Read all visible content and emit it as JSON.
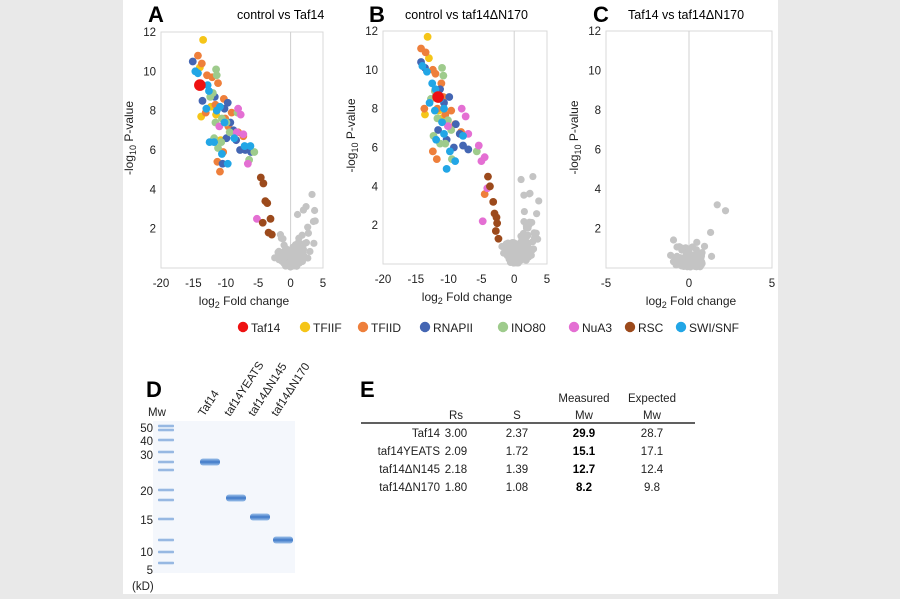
{
  "colors": {
    "Taf14": "#ee1111",
    "TFIIF": "#f5c518",
    "TFIID": "#ee7f3b",
    "RNAPII": "#4466b3",
    "INO80": "#9ecb8c",
    "NuA3": "#e46fd3",
    "RSC": "#9c4a1c",
    "SWI/SNF": "#22a6e6",
    "bg": "#c4c4c4"
  },
  "legend": [
    "Taf14",
    "TFIIF",
    "TFIID",
    "RNAPII",
    "INO80",
    "NuA3",
    "RSC",
    "SWI/SNF"
  ],
  "chart_data": [
    {
      "type": "scatter",
      "panel": "A",
      "title": "control vs Taf14",
      "xlabel": "log2 Fold change",
      "ylabel": "-log10 P-value",
      "xlim": [
        -20,
        5
      ],
      "ylim": [
        0,
        12
      ],
      "xticks": [
        -20,
        -15,
        -10,
        -5,
        0,
        5
      ],
      "yticks": [
        2,
        4,
        6,
        8,
        10,
        12
      ],
      "series": [
        {
          "name": "Taf14",
          "points": [
            [
              -14,
              9.3
            ]
          ]
        },
        {
          "name": "TFIIF",
          "points": [
            [
              -13.5,
              11.6
            ],
            [
              -14,
              10.2
            ],
            [
              -13.8,
              7.7
            ],
            [
              -12.3,
              8.2
            ],
            [
              -11.5,
              7.8
            ],
            [
              -10.8,
              6.5
            ]
          ]
        },
        {
          "name": "TFIID",
          "points": [
            [
              -14.3,
              10.8
            ],
            [
              -13.7,
              10.4
            ],
            [
              -12.9,
              9.8
            ],
            [
              -12.1,
              9.7
            ],
            [
              -11.2,
              9.4
            ],
            [
              -10.3,
              8.6
            ],
            [
              -11.6,
              8.3
            ],
            [
              -10.1,
              7.6
            ],
            [
              -9.6,
              7.2
            ],
            [
              -9.1,
              7.9
            ],
            [
              -10.4,
              5.9
            ],
            [
              -11.3,
              5.4
            ],
            [
              -10.9,
              4.9
            ],
            [
              -8.1,
              6.9
            ],
            [
              -7.3,
              6.7
            ],
            [
              -13.1,
              7.9
            ]
          ]
        },
        {
          "name": "RNAPII",
          "points": [
            [
              -15.1,
              10.5
            ],
            [
              -13.6,
              8.5
            ],
            [
              -11.7,
              8.7
            ],
            [
              -9.7,
              8.4
            ],
            [
              -10.2,
              8.1
            ],
            [
              -9.3,
              7.4
            ],
            [
              -8.8,
              7.0
            ],
            [
              -8.4,
              6.5
            ],
            [
              -7.8,
              6.0
            ],
            [
              -7.0,
              6.0
            ],
            [
              -6.1,
              5.9
            ],
            [
              -9.9,
              6.6
            ],
            [
              -10.5,
              5.3
            ]
          ]
        },
        {
          "name": "INO80",
          "points": [
            [
              -11.5,
              10.1
            ],
            [
              -11.4,
              9.8
            ],
            [
              -12.4,
              8.7
            ],
            [
              -12.0,
              8.9
            ],
            [
              -11.6,
              7.4
            ],
            [
              -10.6,
              7.6
            ],
            [
              -9.9,
              7.4
            ],
            [
              -9.4,
              6.9
            ],
            [
              -8.2,
              7.9
            ],
            [
              -10.7,
              6.4
            ],
            [
              -11.2,
              6.1
            ],
            [
              -5.6,
              5.9
            ],
            [
              -6.4,
              5.5
            ],
            [
              -11.8,
              6.6
            ]
          ]
        },
        {
          "name": "NuA3",
          "points": [
            [
              -8.1,
              8.1
            ],
            [
              -7.7,
              7.8
            ],
            [
              -7.3,
              6.8
            ],
            [
              -8.3,
              6.9
            ],
            [
              -6.6,
              5.3
            ],
            [
              -11.0,
              7.2
            ],
            [
              -5.2,
              2.5
            ]
          ]
        },
        {
          "name": "RSC",
          "points": [
            [
              -4.6,
              4.6
            ],
            [
              -4.2,
              4.3
            ],
            [
              -3.9,
              3.4
            ],
            [
              -3.6,
              3.3
            ],
            [
              -3.1,
              2.5
            ],
            [
              -3.4,
              1.8
            ],
            [
              -4.3,
              2.3
            ],
            [
              -2.9,
              1.7
            ]
          ]
        },
        {
          "name": "SWI/SNF",
          "points": [
            [
              -14.7,
              10.0
            ],
            [
              -14.3,
              9.9
            ],
            [
              -12.8,
              9.3
            ],
            [
              -12.6,
              9.0
            ],
            [
              -13.0,
              8.1
            ],
            [
              -10.9,
              8.2
            ],
            [
              -11.4,
              8.0
            ],
            [
              -10.2,
              7.4
            ],
            [
              -11.8,
              6.4
            ],
            [
              -10.6,
              5.8
            ],
            [
              -9.7,
              5.3
            ],
            [
              -12.5,
              6.4
            ],
            [
              -7.1,
              6.2
            ],
            [
              -6.2,
              6.2
            ],
            [
              -8.7,
              6.6
            ]
          ]
        }
      ]
    },
    {
      "type": "scatter",
      "panel": "B",
      "title": "control vs taf14ΔN170",
      "xlabel": "log2 Fold change",
      "ylabel": "-log10 P-value",
      "xlim": [
        -20,
        5
      ],
      "ylim": [
        0,
        12
      ],
      "xticks": [
        -20,
        -15,
        -10,
        -5,
        0,
        5
      ],
      "yticks": [
        2,
        4,
        6,
        8,
        10,
        12
      ],
      "series": [
        {
          "name": "Taf14",
          "points": [
            [
              -11.6,
              8.6
            ]
          ]
        },
        {
          "name": "TFIIF",
          "points": [
            [
              -13.2,
              11.7
            ],
            [
              -13.0,
              10.6
            ],
            [
              -13.6,
              7.7
            ],
            [
              -11.5,
              7.9
            ],
            [
              -11.0,
              7.5
            ]
          ]
        },
        {
          "name": "TFIID",
          "points": [
            [
              -14.2,
              11.1
            ],
            [
              -13.5,
              10.9
            ],
            [
              -12.4,
              10.0
            ],
            [
              -12.0,
              9.8
            ],
            [
              -11.1,
              9.3
            ],
            [
              -10.8,
              8.6
            ],
            [
              -11.7,
              8.0
            ],
            [
              -10.5,
              7.7
            ],
            [
              -9.6,
              7.9
            ],
            [
              -9.0,
              7.2
            ],
            [
              -13.7,
              8.0
            ],
            [
              -11.8,
              5.4
            ],
            [
              -12.4,
              5.8
            ],
            [
              -4.5,
              3.6
            ],
            [
              -8.1,
              6.8
            ]
          ]
        },
        {
          "name": "RNAPII",
          "points": [
            [
              -14.2,
              10.4
            ],
            [
              -13.6,
              10.1
            ],
            [
              -11.3,
              9.0
            ],
            [
              -11.9,
              8.7
            ],
            [
              -10.7,
              8.3
            ],
            [
              -9.9,
              8.6
            ],
            [
              -8.9,
              7.2
            ],
            [
              -8.3,
              6.7
            ],
            [
              -7.8,
              6.1
            ],
            [
              -7.0,
              5.9
            ],
            [
              -9.2,
              6.0
            ],
            [
              -10.3,
              6.4
            ],
            [
              -11.6,
              6.9
            ]
          ]
        },
        {
          "name": "INO80",
          "points": [
            [
              -11.0,
              10.1
            ],
            [
              -10.8,
              9.7
            ],
            [
              -12.1,
              8.9
            ],
            [
              -12.7,
              8.5
            ],
            [
              -11.7,
              7.5
            ],
            [
              -10.1,
              7.4
            ],
            [
              -9.6,
              6.9
            ],
            [
              -10.5,
              6.2
            ],
            [
              -11.3,
              6.2
            ],
            [
              -9.5,
              5.4
            ],
            [
              -5.7,
              5.8
            ],
            [
              -12.3,
              6.6
            ]
          ]
        },
        {
          "name": "NuA3",
          "points": [
            [
              -7.4,
              7.6
            ],
            [
              -8.0,
              8.0
            ],
            [
              -7.0,
              6.7
            ],
            [
              -5.4,
              6.1
            ],
            [
              -4.5,
              5.5
            ],
            [
              -5.0,
              5.3
            ],
            [
              -4.1,
              3.9
            ],
            [
              -4.8,
              2.2
            ],
            [
              -10.1,
              7.1
            ]
          ]
        },
        {
          "name": "RSC",
          "points": [
            [
              -4.0,
              4.5
            ],
            [
              -3.7,
              4.0
            ],
            [
              -3.2,
              3.2
            ],
            [
              -3.0,
              2.6
            ],
            [
              -2.7,
              2.4
            ],
            [
              -2.6,
              2.1
            ],
            [
              -2.8,
              1.7
            ],
            [
              -2.4,
              1.3
            ]
          ]
        },
        {
          "name": "SWI/SNF",
          "points": [
            [
              -14.0,
              10.2
            ],
            [
              -13.3,
              9.9
            ],
            [
              -12.5,
              9.3
            ],
            [
              -12.0,
              9.0
            ],
            [
              -12.9,
              8.3
            ],
            [
              -11.3,
              8.5
            ],
            [
              -10.7,
              8.0
            ],
            [
              -12.1,
              7.9
            ],
            [
              -11.0,
              7.3
            ],
            [
              -10.7,
              6.7
            ],
            [
              -11.9,
              6.4
            ],
            [
              -9.8,
              5.8
            ],
            [
              -9.0,
              5.3
            ],
            [
              -10.3,
              4.9
            ],
            [
              -7.8,
              6.6
            ]
          ]
        }
      ]
    },
    {
      "type": "scatter",
      "panel": "C",
      "title": "Taf14 vs taf14ΔN170",
      "xlabel": "log2 Fold change",
      "ylabel": "-log10 P-value",
      "xlim": [
        -5,
        5
      ],
      "ylim": [
        0,
        12
      ],
      "xticks": [
        -5,
        0,
        5
      ],
      "yticks": [
        2,
        4,
        6,
        8,
        10,
        12
      ],
      "series": []
    }
  ],
  "axis_label_parts": {
    "log": "log",
    "sub2": "2",
    "fold_rest": " Fold change",
    "neg_log": "-log",
    "sub10": "10",
    "pvalue_rest": " P-value"
  },
  "gel": {
    "letter": "D",
    "mw_title": "Mw",
    "unit_label": "(kD)",
    "markers": [
      "50",
      "40",
      "30",
      "20",
      "15",
      "10",
      "5"
    ],
    "lanes": [
      "Taf14",
      "taf14YEATS",
      "taf14ΔN145",
      "taf14ΔN170"
    ]
  },
  "table": {
    "letter": "E",
    "header_top": [
      "Measured",
      "Expected"
    ],
    "headers": [
      "Rs",
      "S",
      "Mw",
      "Mw"
    ],
    "rows": [
      {
        "name": "Taf14",
        "rs": "3.00",
        "s": "2.37",
        "measured": "29.9",
        "expected": "28.7"
      },
      {
        "name": "taf14YEATS",
        "rs": "2.09",
        "s": "1.72",
        "measured": "15.1",
        "expected": "17.1"
      },
      {
        "name": "taf14ΔN145",
        "rs": "2.18",
        "s": "1.39",
        "measured": "12.7",
        "expected": "12.4"
      },
      {
        "name": "taf14ΔN170",
        "rs": "1.80",
        "s": "1.08",
        "measured": "8.2",
        "expected": "9.8"
      }
    ]
  }
}
